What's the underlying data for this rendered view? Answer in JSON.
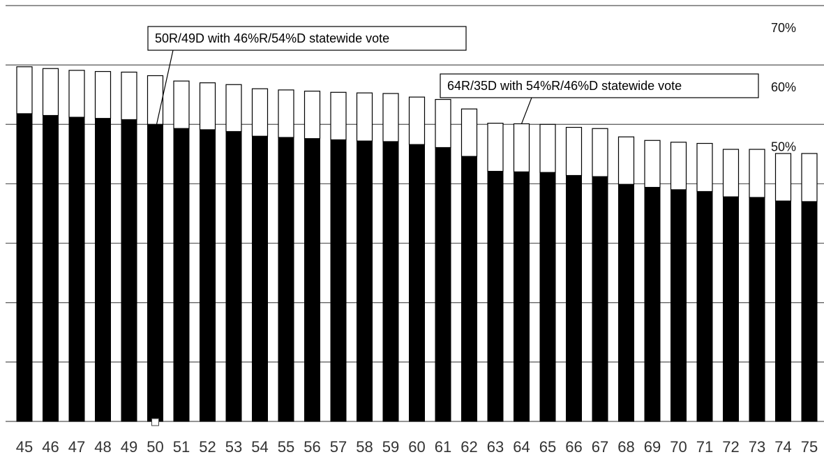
{
  "chart_data": {
    "type": "bar",
    "categories": [
      "45",
      "46",
      "47",
      "48",
      "49",
      "50",
      "51",
      "52",
      "53",
      "54",
      "55",
      "56",
      "57",
      "58",
      "59",
      "60",
      "61",
      "62",
      "63",
      "64",
      "65",
      "66",
      "67",
      "68",
      "69",
      "70",
      "71",
      "72",
      "73",
      "74",
      "75"
    ],
    "series": [
      {
        "values": [
          51.8,
          51.5,
          51.2,
          51.0,
          50.8,
          50.0,
          49.3,
          49.1,
          48.8,
          48.0,
          47.8,
          47.6,
          47.4,
          47.2,
          47.1,
          46.6,
          46.1,
          44.6,
          42.1,
          42.0,
          41.9,
          41.4,
          41.2,
          39.9,
          39.4,
          39.0,
          38.7,
          37.8,
          37.7,
          37.1,
          37.0
        ],
        "color": "#000000"
      },
      {
        "values": [
          59.7,
          59.4,
          59.1,
          58.9,
          58.8,
          58.2,
          57.3,
          57.0,
          56.7,
          56.0,
          55.8,
          55.6,
          55.4,
          55.3,
          55.2,
          54.6,
          54.2,
          52.6,
          50.2,
          50.1,
          50.0,
          49.5,
          49.3,
          47.9,
          47.3,
          47.0,
          46.8,
          45.8,
          45.8,
          45.1,
          45.1
        ],
        "color": "#ffffff"
      }
    ],
    "ylim": [
      0,
      70
    ],
    "gridlines": [
      0,
      10,
      20,
      30,
      40,
      50,
      60,
      70
    ],
    "grid": true,
    "y_tick_labels": [
      {
        "value": 70,
        "text": "70%"
      },
      {
        "value": 60,
        "text": "60%"
      },
      {
        "value": 50,
        "text": "50%"
      }
    ],
    "annotations": [
      {
        "text": "50R/49D with 46%R/54%D statewide vote",
        "category": "50",
        "value": 50.0
      },
      {
        "text": "64R/35D with 54%R/46%D statewide vote",
        "category": "64",
        "value": 50.1
      }
    ],
    "marker": {
      "category": "50",
      "value": 0
    }
  }
}
